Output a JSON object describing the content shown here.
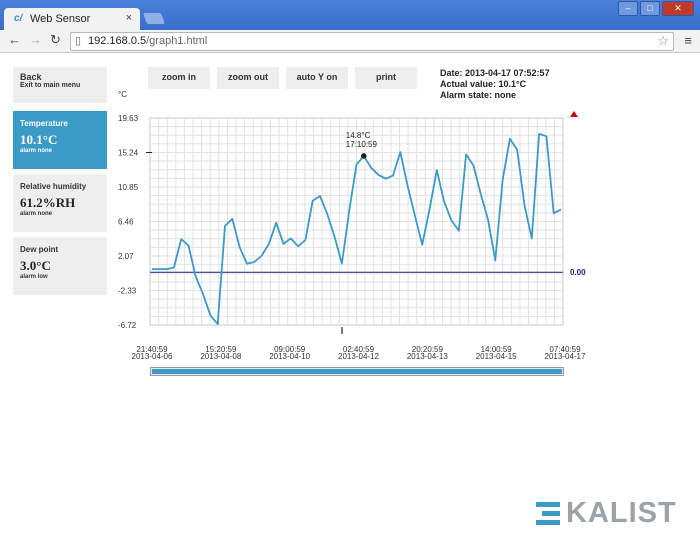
{
  "browser": {
    "tab_title": "Web Sensor",
    "tab_close": "×",
    "url_host": "192.168.0.5",
    "url_path": "/graph1.html"
  },
  "back": {
    "label": "Back",
    "sublabel": "Exit to main menu"
  },
  "sensors": [
    {
      "name": "Temperature",
      "value": "10.1°C",
      "alarm": "alarm none"
    },
    {
      "name": "Relative humidity",
      "value": "61.2%RH",
      "alarm": "alarm none"
    },
    {
      "name": "Dew point",
      "value": "3.0°C",
      "alarm": "alarm low"
    }
  ],
  "controls": {
    "zoom_in": "zoom in",
    "zoom_out": "zoom out",
    "auto_y": "auto Y on",
    "print": "print"
  },
  "status": {
    "date": "Date: 2013-04-17 07:52:57",
    "actual": "Actual value: 10.1°C",
    "alarm": "Alarm state: none"
  },
  "chart_data": {
    "type": "line",
    "ylabel": "°C",
    "ylim": [
      -6.72,
      19.63
    ],
    "y_ticks": [
      "19.63",
      "15.24",
      "10.85",
      "6.46",
      "2.07",
      "-2.33",
      "-6.72"
    ],
    "x_ticks": [
      {
        "time": "21:40:59",
        "date": "2013-04-06"
      },
      {
        "time": "15:20:59",
        "date": "2013-04-08"
      },
      {
        "time": "09:00:59",
        "date": "2013-04-10"
      },
      {
        "time": "02:40:59",
        "date": "2013-04-12"
      },
      {
        "time": "20:20:59",
        "date": "2013-04-13"
      },
      {
        "time": "14:00:59",
        "date": "2013-04-15"
      },
      {
        "time": "07:40:59",
        "date": "2013-04-17"
      }
    ],
    "grid": true,
    "line_color": "#3c9ac7",
    "threshold": {
      "value": 0.0,
      "label": "0.00",
      "color": "#1a237e"
    },
    "alarm_marker_color": "#cc0000",
    "marker": {
      "value": "14.8°C",
      "time": "17:10:59"
    },
    "series": [
      {
        "values": [
          0.4,
          0.4,
          0.4,
          0.6,
          4.2,
          3.4,
          -0.6,
          -2.8,
          -5.5,
          -6.6,
          5.9,
          6.8,
          3.2,
          1.1,
          1.3,
          2.1,
          3.6,
          6.3,
          3.6,
          4.3,
          3.3,
          4.1,
          9.1,
          9.7,
          7.4,
          4.5,
          1.1,
          7.8,
          13.7,
          14.8,
          13.3,
          12.4,
          11.9,
          12.3,
          15.3,
          11.0,
          7.2,
          3.5,
          8.0,
          13.0,
          9.0,
          6.6,
          5.3,
          15.0,
          13.6,
          10.0,
          6.7,
          1.5,
          11.7,
          17.0,
          15.6,
          8.5,
          4.3,
          17.6,
          17.3,
          7.5,
          8.0
        ]
      }
    ]
  },
  "logo": {
    "text": "KALIST"
  }
}
